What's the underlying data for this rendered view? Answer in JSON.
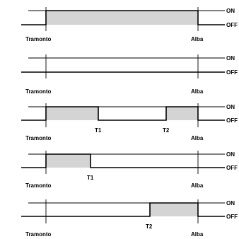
{
  "timing_diagrams": [
    {
      "state_on_label": "ON",
      "state_off_label": "OFF",
      "start_label": "Tramonto",
      "end_label": "Alba",
      "mid_labels": [],
      "on_intervals": [
        [
          "Tramonto",
          "Alba"
        ]
      ]
    },
    {
      "state_on_label": "ON",
      "state_off_label": "OFF",
      "start_label": "Tramonto",
      "end_label": "Alba",
      "mid_labels": [],
      "on_intervals": []
    },
    {
      "state_on_label": "ON",
      "state_off_label": "OFF",
      "start_label": "Tramonto",
      "end_label": "Alba",
      "mid_labels": [
        "T1",
        "T2"
      ],
      "on_intervals": [
        [
          "Tramonto",
          "T1"
        ],
        [
          "T2",
          "Alba"
        ]
      ]
    },
    {
      "state_on_label": "ON",
      "state_off_label": "OFF",
      "start_label": "Tramonto",
      "end_label": "Alba",
      "mid_labels": [
        "T1"
      ],
      "on_intervals": [
        [
          "Tramonto",
          "T1"
        ]
      ]
    },
    {
      "state_on_label": "ON",
      "state_off_label": "OFF",
      "start_label": "Tramonto",
      "end_label": "Alba",
      "mid_labels": [
        "T2"
      ],
      "on_intervals": [
        [
          "T2",
          "Alba"
        ]
      ]
    }
  ]
}
